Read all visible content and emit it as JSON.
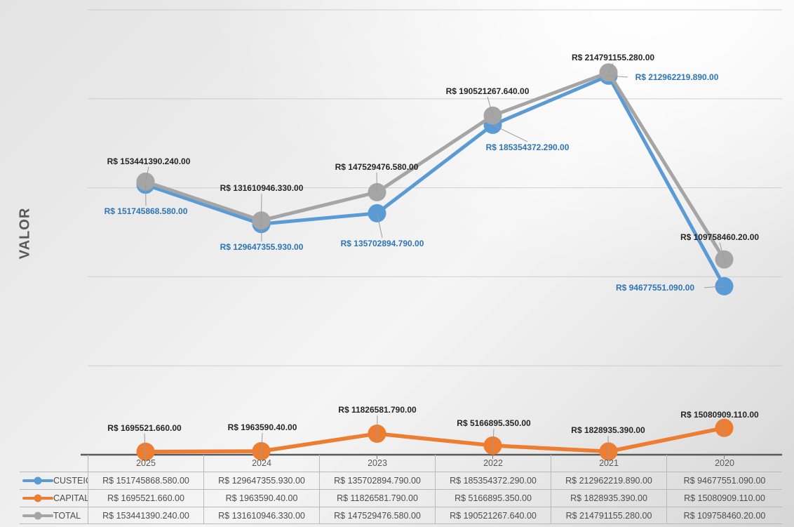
{
  "y_axis_title": "VALOR",
  "chart_data": {
    "type": "line",
    "title": "",
    "xlabel": "",
    "ylabel": "VALOR",
    "categories": [
      "2025",
      "2024",
      "2023",
      "2022",
      "2021",
      "2020"
    ],
    "ylim": [
      0,
      250000000
    ],
    "grid_step": 50000000,
    "grid": true,
    "legend_position": "table-left",
    "series": [
      {
        "name": "CUSTEIO",
        "color": "#5B9BD5",
        "label_color": "#2E75B6",
        "values": [
          151745868.58,
          129647355.93,
          135702894.79,
          185354372.29,
          212962219.89,
          94677551.09
        ],
        "labels": [
          "R$ 151745868.580.00",
          "R$ 129647355.930.00",
          "R$ 135702894.790.00",
          "R$ 185354372.290.00",
          "R$ 212962219.890.00",
          "R$ 94677551.090.00"
        ]
      },
      {
        "name": "CAPITAL",
        "color": "#ED7D31",
        "label_color": "#262626",
        "values": [
          1695521.66,
          1963590.4,
          11826581.79,
          5166895.35,
          1828935.39,
          15080909.11
        ],
        "labels": [
          "R$ 1695521.660.00",
          "R$ 1963590.40.00",
          "R$ 11826581.790.00",
          "R$ 5166895.350.00",
          "R$ 1828935.390.00",
          "R$ 15080909.110.00"
        ]
      },
      {
        "name": "TOTAL",
        "color": "#A5A5A5",
        "label_color": "#262626",
        "values": [
          153441390.24,
          131610946.33,
          147529476.58,
          190521267.64,
          214791155.28,
          109758460.2
        ],
        "labels": [
          "R$ 153441390.240.00",
          "R$ 131610946.330.00",
          "R$ 147529476.580.00",
          "R$ 190521267.640.00",
          "R$ 214791155.280.00",
          "R$ 109758460.20.00"
        ]
      }
    ]
  }
}
